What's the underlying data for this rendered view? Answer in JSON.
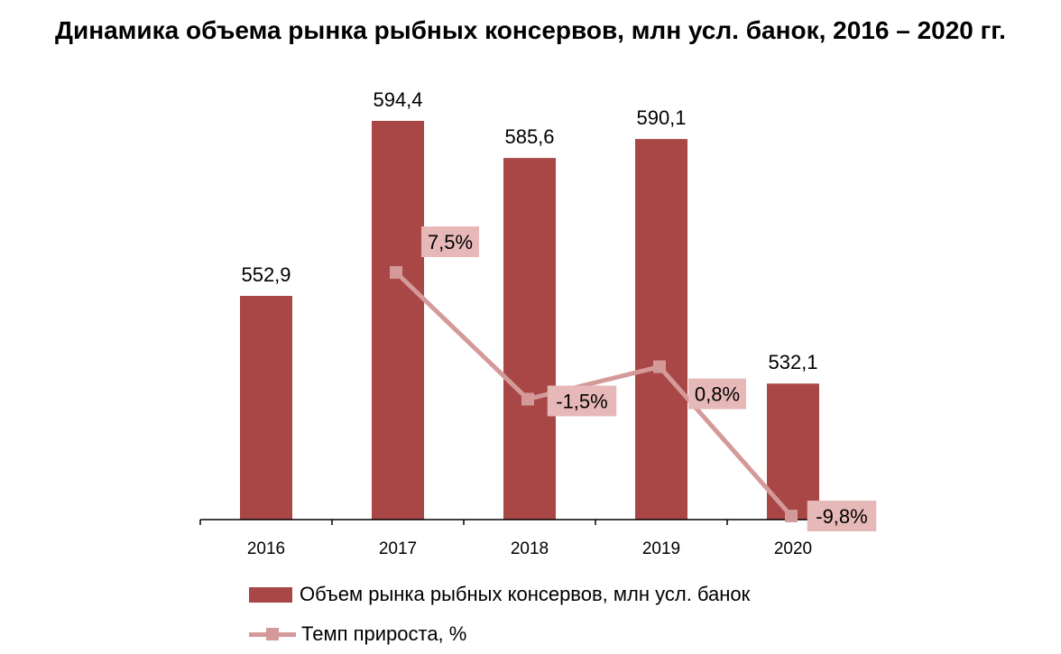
{
  "chart_data": {
    "type": "bar+line",
    "title": "Динамика объема рынка рыбных консервов, млн усл. банок, 2016 – 2020 гг.",
    "categories": [
      "2016",
      "2017",
      "2018",
      "2019",
      "2020"
    ],
    "series": [
      {
        "name": "Объем рынка рыбных консервов, млн усл. банок",
        "type": "bar",
        "values": [
          552.9,
          594.4,
          585.6,
          590.1,
          532.1
        ],
        "labels": [
          "552,9",
          "594,4",
          "585,6",
          "590,1",
          "532,1"
        ],
        "color": "#a94646"
      },
      {
        "name": "Темп прироста, %",
        "type": "line",
        "values": [
          null,
          7.5,
          -1.5,
          0.8,
          -9.8
        ],
        "labels": [
          "",
          "7,5%",
          "-1,5%",
          "0,8%",
          "-9,8%"
        ],
        "color": "#d49a9a",
        "label_bg": "#e6b8b8"
      }
    ],
    "legend_position": "bottom",
    "grid": false
  }
}
